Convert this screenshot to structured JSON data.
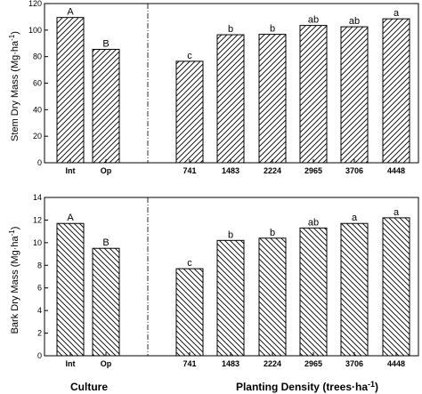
{
  "chart_data": [
    {
      "type": "bar",
      "ylabel_main": "Stem Dry Mass (Mg·ha",
      "ylabel_sup": "-1",
      "ylabel_close": ")",
      "ylim": [
        0,
        120
      ],
      "yticks": [
        "0",
        "20",
        "40",
        "60",
        "80",
        "100",
        "120"
      ],
      "categories": [
        "Int",
        "Op",
        "741",
        "1483",
        "2224",
        "2965",
        "3706",
        "4448"
      ],
      "values": [
        109.5,
        85.5,
        76.5,
        96.5,
        96.8,
        103.5,
        102.5,
        108.5
      ],
      "letters": [
        "A",
        "B",
        "c",
        "b",
        "b",
        "ab",
        "ab",
        "a"
      ],
      "hatch": "forward"
    },
    {
      "type": "bar",
      "ylabel_main": "Bark Dry Mass (Mg·ha",
      "ylabel_sup": "-1",
      "ylabel_close": ")",
      "ylim": [
        0,
        14
      ],
      "yticks": [
        "0",
        "2",
        "4",
        "6",
        "8",
        "10",
        "12",
        "14"
      ],
      "categories": [
        "Int",
        "Op",
        "741",
        "1483",
        "2224",
        "2965",
        "3706",
        "4448"
      ],
      "values": [
        11.7,
        9.5,
        7.7,
        10.2,
        10.4,
        11.3,
        11.7,
        12.2
      ],
      "letters": [
        "A",
        "B",
        "c",
        "b",
        "b",
        "ab",
        "a",
        "a"
      ],
      "hatch": "backward"
    }
  ],
  "group_labels": {
    "culture": "Culture",
    "density_main": "Planting Density (trees·ha",
    "density_sup": "-1",
    "density_close": ")"
  }
}
